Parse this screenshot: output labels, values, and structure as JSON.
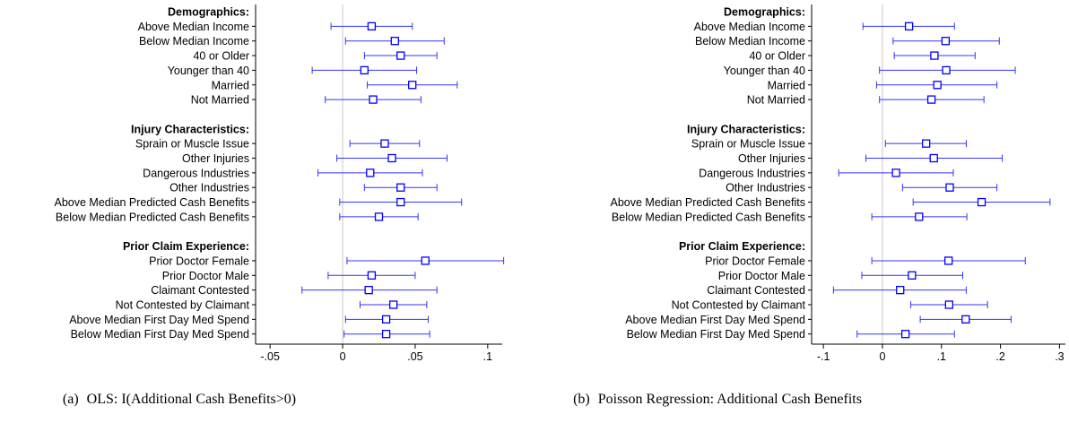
{
  "chart_data": [
    {
      "type": "coefficient-plot",
      "caption_tag": "(a)",
      "caption": "OLS: I(Additional Cash Benefits>0)",
      "xlim": [
        -0.06,
        0.11
      ],
      "xticks": [
        -0.05,
        0,
        0.05,
        0.1
      ],
      "xtick_labels": [
        "-.05",
        "0",
        ".05",
        ".1"
      ],
      "reference_line": 0,
      "grid": false,
      "groups": [
        {
          "header": "Demographics:",
          "rows": [
            {
              "label": "Above Median Income",
              "est": 0.02,
              "lo": -0.008,
              "hi": 0.048
            },
            {
              "label": "Below Median Income",
              "est": 0.036,
              "lo": 0.002,
              "hi": 0.07
            },
            {
              "label": "40 or Older",
              "est": 0.04,
              "lo": 0.015,
              "hi": 0.065
            },
            {
              "label": "Younger than 40",
              "est": 0.015,
              "lo": -0.021,
              "hi": 0.051
            },
            {
              "label": "Married",
              "est": 0.048,
              "lo": 0.017,
              "hi": 0.079
            },
            {
              "label": "Not Married",
              "est": 0.021,
              "lo": -0.012,
              "hi": 0.054
            }
          ]
        },
        {
          "header": "Injury Characteristics:",
          "rows": [
            {
              "label": "Sprain or Muscle Issue",
              "est": 0.029,
              "lo": 0.005,
              "hi": 0.053
            },
            {
              "label": "Other Injuries",
              "est": 0.034,
              "lo": -0.004,
              "hi": 0.072
            },
            {
              "label": "Dangerous Industries",
              "est": 0.019,
              "lo": -0.017,
              "hi": 0.055
            },
            {
              "label": "Other Industries",
              "est": 0.04,
              "lo": 0.015,
              "hi": 0.065
            },
            {
              "label": "Above Median Predicted Cash Benefits",
              "est": 0.04,
              "lo": -0.002,
              "hi": 0.082
            },
            {
              "label": "Below Median Predicted Cash Benefits",
              "est": 0.025,
              "lo": -0.002,
              "hi": 0.052
            }
          ]
        },
        {
          "header": "Prior Claim Experience:",
          "rows": [
            {
              "label": "Prior Doctor Female",
              "est": 0.057,
              "lo": 0.003,
              "hi": 0.111
            },
            {
              "label": "Prior Doctor Male",
              "est": 0.02,
              "lo": -0.01,
              "hi": 0.05
            },
            {
              "label": "Claimant Contested",
              "est": 0.018,
              "lo": -0.028,
              "hi": 0.065
            },
            {
              "label": "Not Contested by Claimant",
              "est": 0.035,
              "lo": 0.012,
              "hi": 0.058
            },
            {
              "label": "Above Median First Day Med Spend",
              "est": 0.03,
              "lo": 0.002,
              "hi": 0.059
            },
            {
              "label": "Below Median First Day Med Spend",
              "est": 0.03,
              "lo": 0.001,
              "hi": 0.06
            }
          ]
        }
      ]
    },
    {
      "type": "coefficient-plot",
      "caption_tag": "(b)",
      "caption": "Poisson Regression: Additional Cash Benefits",
      "xlim": [
        -0.12,
        0.31
      ],
      "xticks": [
        -0.1,
        0,
        0.1,
        0.2,
        0.3
      ],
      "xtick_labels": [
        "-.1",
        "0",
        ".1",
        ".2",
        ".3"
      ],
      "reference_line": 0,
      "grid": false,
      "groups": [
        {
          "header": "Demographics:",
          "rows": [
            {
              "label": "Above Median Income",
              "est": 0.045,
              "lo": -0.033,
              "hi": 0.122
            },
            {
              "label": "Below Median Income",
              "est": 0.107,
              "lo": 0.018,
              "hi": 0.198
            },
            {
              "label": "40 or Older",
              "est": 0.088,
              "lo": 0.02,
              "hi": 0.157
            },
            {
              "label": "Younger than 40",
              "est": 0.108,
              "lo": -0.005,
              "hi": 0.225
            },
            {
              "label": "Married",
              "est": 0.093,
              "lo": -0.01,
              "hi": 0.194
            },
            {
              "label": "Not Married",
              "est": 0.083,
              "lo": -0.005,
              "hi": 0.172
            }
          ]
        },
        {
          "header": "Injury Characteristics:",
          "rows": [
            {
              "label": "Sprain or Muscle Issue",
              "est": 0.074,
              "lo": 0.005,
              "hi": 0.142
            },
            {
              "label": "Other Injuries",
              "est": 0.087,
              "lo": -0.028,
              "hi": 0.203
            },
            {
              "label": "Dangerous Industries",
              "est": 0.023,
              "lo": -0.074,
              "hi": 0.12
            },
            {
              "label": "Other Industries",
              "est": 0.114,
              "lo": 0.034,
              "hi": 0.194
            },
            {
              "label": "Above Median Predicted Cash Benefits",
              "est": 0.168,
              "lo": 0.052,
              "hi": 0.284
            },
            {
              "label": "Below Median Predicted Cash Benefits",
              "est": 0.062,
              "lo": -0.018,
              "hi": 0.143
            }
          ]
        },
        {
          "header": "Prior Claim Experience:",
          "rows": [
            {
              "label": "Prior Doctor Female",
              "est": 0.112,
              "lo": -0.018,
              "hi": 0.242
            },
            {
              "label": "Prior Doctor Male",
              "est": 0.05,
              "lo": -0.035,
              "hi": 0.136
            },
            {
              "label": "Claimant Contested",
              "est": 0.03,
              "lo": -0.083,
              "hi": 0.142
            },
            {
              "label": "Not Contested by Claimant",
              "est": 0.113,
              "lo": 0.048,
              "hi": 0.178
            },
            {
              "label": "Above Median First Day Med Spend",
              "est": 0.141,
              "lo": 0.064,
              "hi": 0.218
            },
            {
              "label": "Below Median First Day Med Spend",
              "est": 0.039,
              "lo": -0.043,
              "hi": 0.122
            }
          ]
        }
      ]
    }
  ],
  "colors": {
    "marker": "#0000ff",
    "ci": "#3333ff",
    "reference": "#c8c8c8",
    "axis": "#000000"
  }
}
